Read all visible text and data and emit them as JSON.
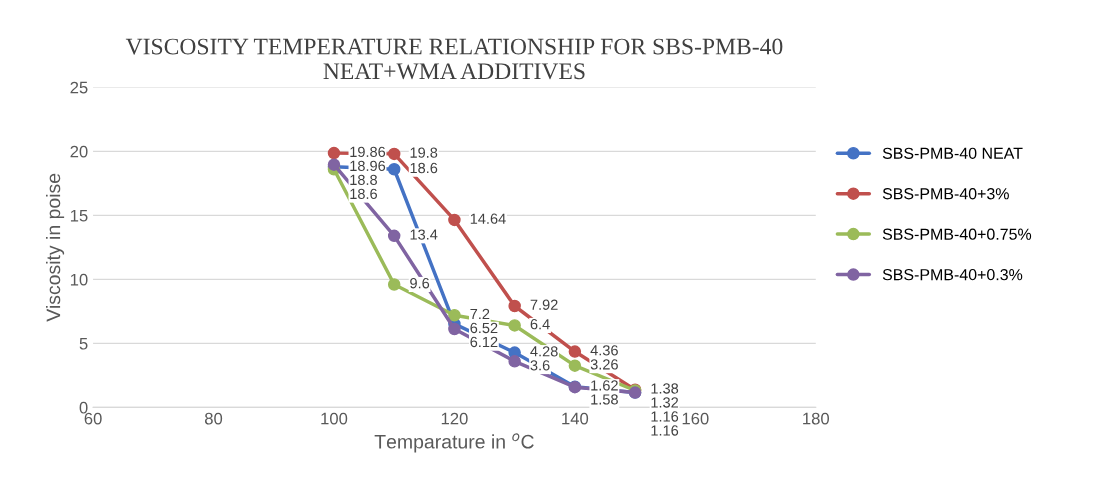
{
  "chart_data": {
    "type": "line",
    "title": "VISCOSITY TEMPERATURE RELATIONSHIP FOR SBS-PMB-40\nNEAT+WMA ADDITIVES",
    "xlabel": "Temparature in $^{o}$C",
    "ylabel": "Viscosity in poise",
    "x": [
      100,
      110,
      120,
      130,
      140,
      150
    ],
    "series": [
      {
        "name": "SBS-PMB-40 NEAT",
        "color": "#4472c4",
        "values": [
          18.8,
          18.6,
          6.52,
          4.28,
          1.62,
          1.16
        ]
      },
      {
        "name": "SBS-PMB-40+3%",
        "color": "#c0504d",
        "values": [
          19.86,
          19.8,
          14.64,
          7.92,
          4.36,
          1.38
        ]
      },
      {
        "name": "SBS-PMB-40+0.75%",
        "color": "#9bbb59",
        "values": [
          18.6,
          9.6,
          7.2,
          6.4,
          3.26,
          1.32
        ]
      },
      {
        "name": "SBS-PMB-40+0.3%",
        "color": "#8064a2",
        "values": [
          18.96,
          13.4,
          6.12,
          3.6,
          1.58,
          1.16
        ]
      }
    ],
    "xlim": [
      60,
      180
    ],
    "xticks": [
      60,
      80,
      100,
      120,
      140,
      160,
      180
    ],
    "ylim": [
      0,
      25
    ],
    "yticks": [
      0,
      5,
      10,
      15,
      20,
      25
    ],
    "grid": "y",
    "legend": "right",
    "marker": "circle",
    "line_style": "solid",
    "data_labels": true
  }
}
